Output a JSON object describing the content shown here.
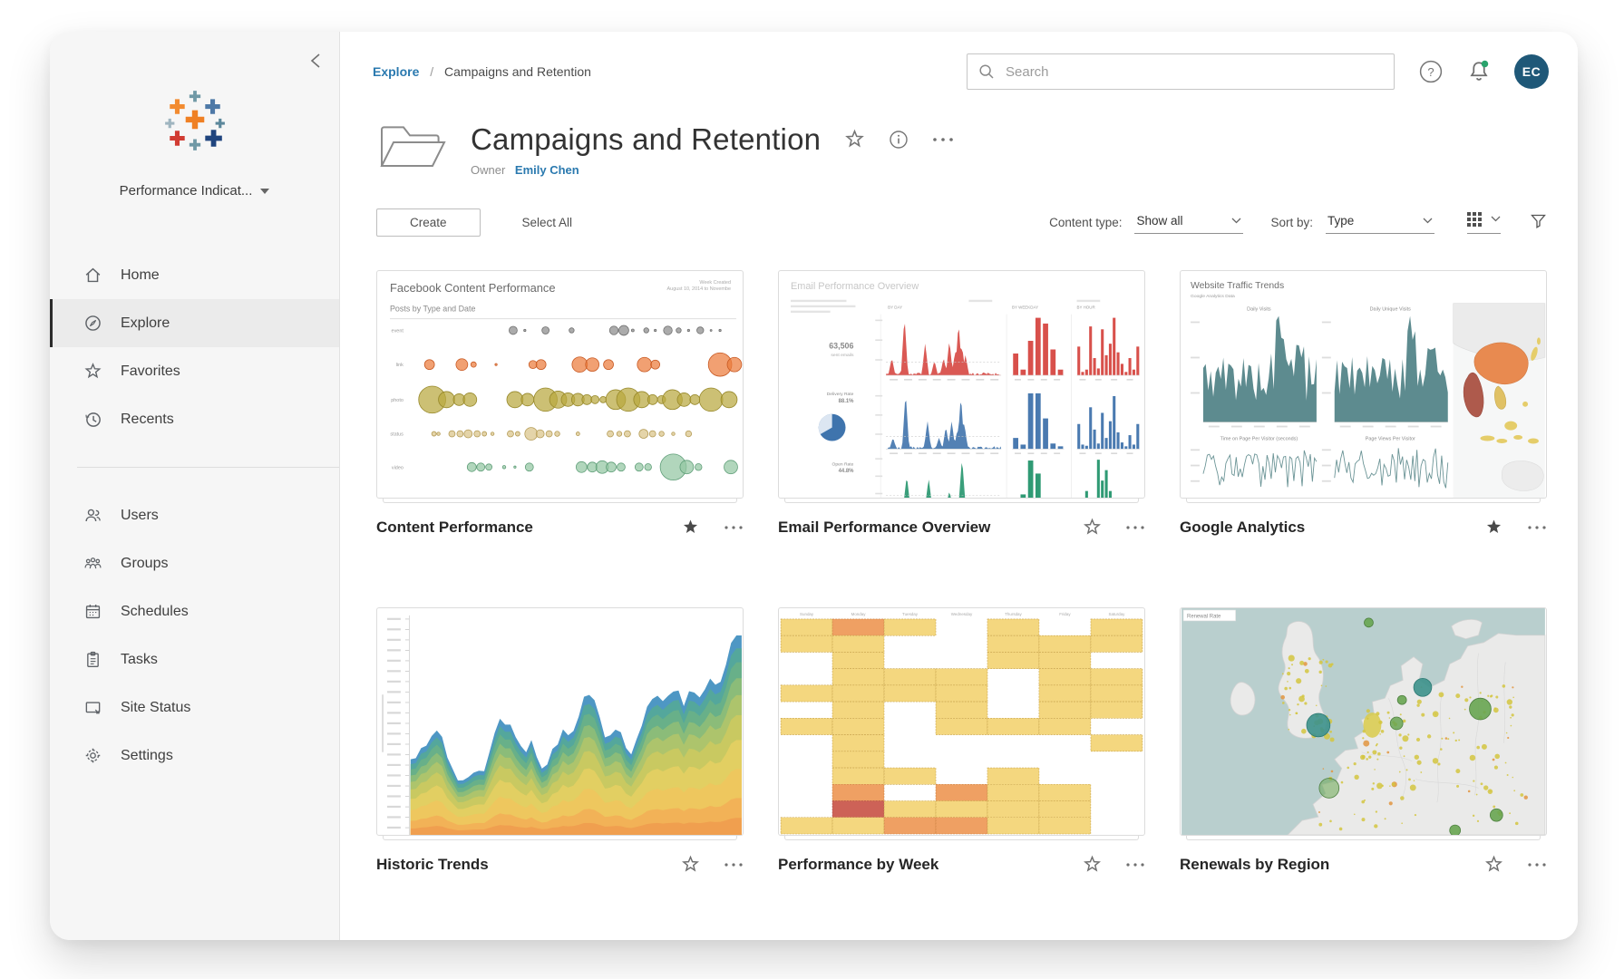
{
  "sidebar": {
    "site_selector": "Performance Indicat...",
    "nav_primary": [
      {
        "label": "Home",
        "active": false
      },
      {
        "label": "Explore",
        "active": true
      },
      {
        "label": "Favorites",
        "active": false
      },
      {
        "label": "Recents",
        "active": false
      }
    ],
    "nav_admin": [
      {
        "label": "Users"
      },
      {
        "label": "Groups"
      },
      {
        "label": "Schedules"
      },
      {
        "label": "Tasks"
      },
      {
        "label": "Site Status"
      },
      {
        "label": "Settings"
      }
    ]
  },
  "topbar": {
    "breadcrumb_root": "Explore",
    "breadcrumb_separator": "/",
    "breadcrumb_current": "Campaigns and Retention",
    "search_placeholder": "Search",
    "avatar_initials": "EC"
  },
  "header": {
    "title": "Campaigns and Retention",
    "owner_label": "Owner",
    "owner_name": "Emily Chen"
  },
  "toolbar": {
    "create": "Create",
    "select_all": "Select All",
    "content_type_label": "Content type:",
    "content_type_value": "Show all",
    "sort_by_label": "Sort by:",
    "sort_by_value": "Type"
  },
  "cards": [
    {
      "title": "Content Performance",
      "starred": true,
      "thumb": {
        "title": "Facebook Content Performance",
        "subtitle": "Posts by Type and Date",
        "note1": "Week Created",
        "note2": "August 10, 2014 to Novembe",
        "rows": [
          "event",
          "link",
          "photo",
          "status",
          "video"
        ]
      }
    },
    {
      "title": "Email Performance Overview",
      "starred": false,
      "thumb": {
        "title": "Email Performance Overview",
        "kpi": "63,506",
        "kpi_label": "sent emails",
        "delivery_label": "Delivery Rate",
        "delivery_value": "88.1%",
        "open_label": "Open Rate",
        "open_value": "44.8%",
        "col_day": "BY DAY",
        "col_weekday": "BY WEEKDAY",
        "col_hour": "BY HOUR"
      }
    },
    {
      "title": "Google Analytics",
      "starred": true,
      "thumb": {
        "title": "Website Traffic Trends",
        "subtitle": "Google Analytics Data",
        "chart1": "Daily Visits",
        "chart2": "Daily Unique Visits",
        "chart3": "Time on Page Per Visitor (seconds)",
        "chart4": "Page Views Per Visitor"
      }
    },
    {
      "title": "Historic Trends",
      "starred": false,
      "thumb": {}
    },
    {
      "title": "Performance by Week",
      "starred": false,
      "thumb": {
        "days": [
          "Sunday",
          "Monday",
          "Tuesday",
          "Wednesday",
          "Thursday",
          "Friday",
          "Saturday"
        ]
      }
    },
    {
      "title": "Renewals by Region",
      "starred": false,
      "thumb": {
        "label": "Renewal Rate"
      }
    }
  ],
  "colors": {
    "accent_blue": "#2a79af",
    "avatar_bg": "#1f5878",
    "notification_green": "#2aa36c",
    "star_filled": "#4a4a4a"
  }
}
